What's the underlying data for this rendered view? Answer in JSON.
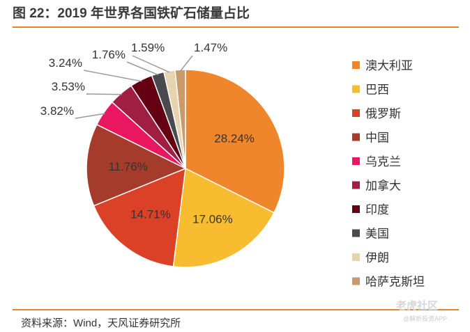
{
  "figure": {
    "title": "图 22：2019 年世界各国铁矿石储量占比",
    "source": "资料来源：Wind，天风证券研究所"
  },
  "watermark": {
    "brand": "老虎社区",
    "sub": "@解析投资APP"
  },
  "chart_data": {
    "type": "pie",
    "title": "2019 年世界各国铁矿石储量占比",
    "legend_position": "right",
    "categories": [
      "澳大利亚",
      "巴西",
      "俄罗斯",
      "中国",
      "乌克兰",
      "加拿大",
      "印度",
      "美国",
      "伊朗",
      "哈萨克斯坦"
    ],
    "values": [
      28.24,
      17.06,
      14.71,
      11.76,
      3.82,
      3.53,
      3.24,
      1.76,
      1.59,
      1.47
    ],
    "labels": [
      "28.24%",
      "17.06%",
      "14.71%",
      "11.76%",
      "3.82%",
      "3.53%",
      "3.24%",
      "1.76%",
      "1.59%",
      "1.47%"
    ],
    "colors": [
      "#F0862B",
      "#F7BC2F",
      "#DB4127",
      "#A53B2A",
      "#E8175F",
      "#A01E42",
      "#650012",
      "#4A4A4E",
      "#E7D3AD",
      "#C99A6C"
    ]
  }
}
